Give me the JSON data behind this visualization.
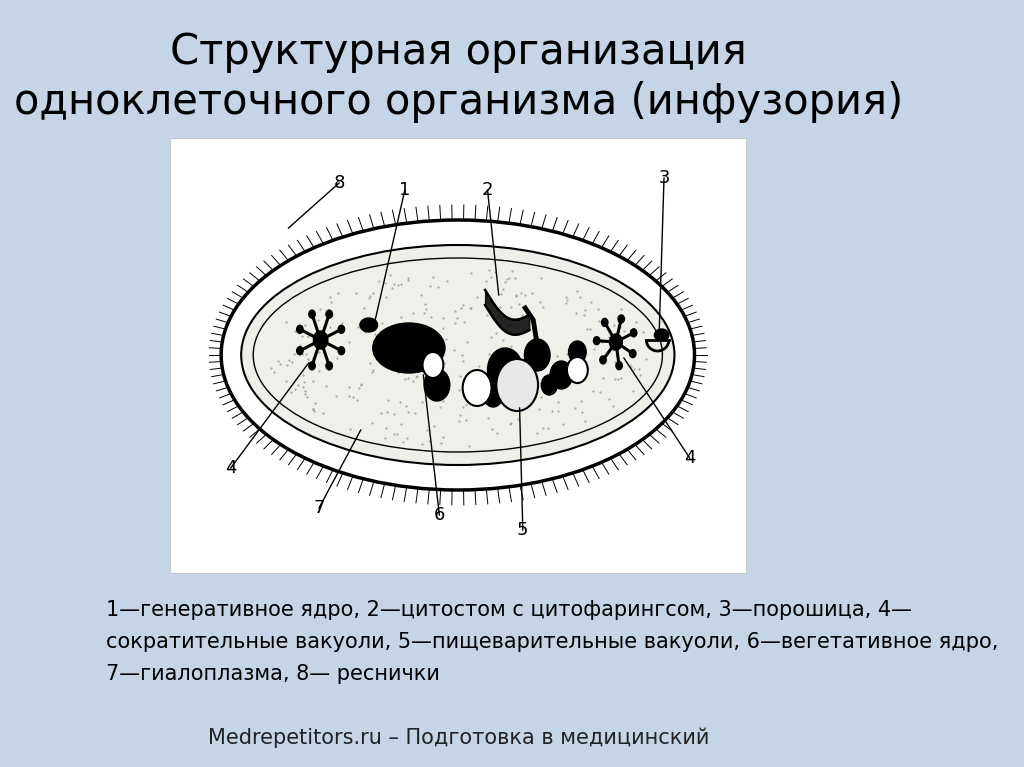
{
  "title_line1": "Структурная организация",
  "title_line2": "одноклеточного организма (инфузория)",
  "caption_line1": "1—генеративное ядро, 2—цитостом с цитофарингсом, 3—порошица, 4—",
  "caption_line2": "сократительные вакуоли, 5—пищеварительные вакуоли, 6—вегетативное ядро,",
  "caption_line3": "7—гиалоплазма, 8— реснички",
  "footer": "Medrepetitors.ru – Подготовка в медицинский",
  "bg_color": "#c5d5e5",
  "title_fontsize": 30,
  "caption_fontsize": 15,
  "footer_fontsize": 15
}
